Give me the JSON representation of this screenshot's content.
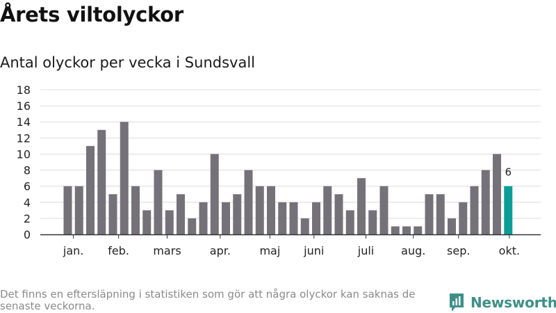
{
  "header": {
    "title": "Årets viltolyckor",
    "subtitle": "Antal olyckor per vecka i Sundsvall"
  },
  "footer": {
    "note": "Det finns en eftersläpning i statistiken som gör att några olyckor kan saknas de senaste veckorna.",
    "brand": "Newsworthy"
  },
  "colors": {
    "bar": "#747278",
    "highlight": "#0a9e96",
    "grid": "#dcdcdc",
    "axis": "#333333",
    "brand": "#3e8f88"
  },
  "chart_data": {
    "type": "bar",
    "title": "Antal olyckor per vecka i Sundsvall",
    "xlabel": "",
    "ylabel": "",
    "ylim": [
      0,
      18
    ],
    "yticks": [
      0,
      2,
      4,
      6,
      8,
      10,
      12,
      14,
      16,
      18
    ],
    "grid": true,
    "x": [
      1,
      2,
      3,
      4,
      5,
      6,
      7,
      8,
      9,
      10,
      11,
      12,
      13,
      14,
      15,
      16,
      17,
      18,
      19,
      20,
      21,
      22,
      23,
      24,
      25,
      26,
      27,
      28,
      29,
      30,
      31,
      32,
      33,
      34,
      35,
      36,
      37,
      38,
      39,
      40
    ],
    "values": [
      6,
      6,
      11,
      13,
      5,
      14,
      6,
      3,
      8,
      3,
      5,
      2,
      4,
      10,
      4,
      5,
      8,
      6,
      6,
      4,
      4,
      2,
      4,
      6,
      5,
      3,
      7,
      3,
      6,
      1,
      1,
      1,
      5,
      5,
      2,
      4,
      6,
      8,
      10,
      6
    ],
    "highlight_index": 39,
    "highlight_label": "6",
    "month_ticks": [
      {
        "label": "jan.",
        "x": 1.5
      },
      {
        "label": "feb.",
        "x": 5.5
      },
      {
        "label": "mars",
        "x": 9.8
      },
      {
        "label": "apr.",
        "x": 14.5
      },
      {
        "label": "maj",
        "x": 18.9
      },
      {
        "label": "juni",
        "x": 22.8
      },
      {
        "label": "juli",
        "x": 27.4
      },
      {
        "label": "aug.",
        "x": 31.6
      },
      {
        "label": "sep.",
        "x": 35.6
      },
      {
        "label": "okt.",
        "x": 40.1
      }
    ]
  }
}
